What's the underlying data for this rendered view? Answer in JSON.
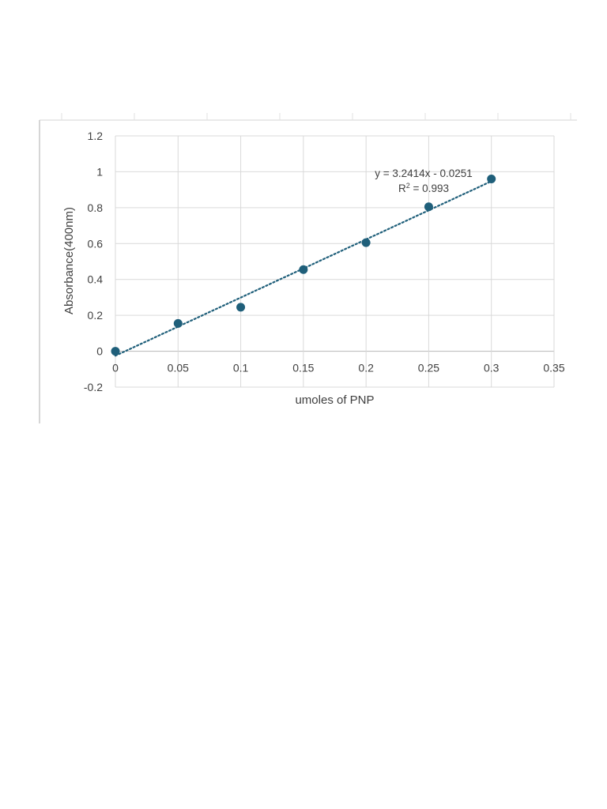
{
  "colors": {
    "point": "#1f5f7a",
    "trendline": "#1f5f7a",
    "grid": "#d9d9d9",
    "zero_axis": "#bfbfbf",
    "text": "#404040"
  },
  "chart_data": {
    "type": "scatter",
    "xlabel": "umoles of PNP",
    "ylabel": "Absorbance(400nm)",
    "xlim": [
      0,
      0.35
    ],
    "ylim": [
      -0.2,
      1.2
    ],
    "x_ticks": [
      "0",
      "0.05",
      "0.1",
      "0.15",
      "0.2",
      "0.25",
      "0.3",
      "0.35"
    ],
    "y_ticks": [
      "-0.2",
      "0",
      "0.2",
      "0.4",
      "0.6",
      "0.8",
      "1",
      "1.2"
    ],
    "grid": true,
    "series": [
      {
        "x": [
          0,
          0.05,
          0.1,
          0.15,
          0.2,
          0.25,
          0.3
        ],
        "y": [
          0,
          0.155,
          0.245,
          0.455,
          0.605,
          0.805,
          0.96
        ]
      }
    ],
    "trendline": {
      "type": "linear",
      "slope": 3.2414,
      "intercept": -0.0251,
      "style": "dotted",
      "equation_text": "y = 3.2414x - 0.0251",
      "r2_prefix": "R",
      "r2_sup": "2",
      "r2_suffix": " = 0.993"
    }
  }
}
